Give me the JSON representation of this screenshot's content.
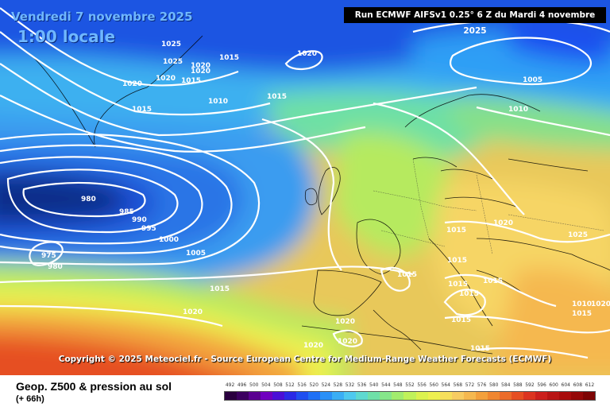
{
  "header": {
    "date": "Vendredi 7 novembre 2025",
    "time": "1:00 locale",
    "run": "Run ECMWF AIFSv1 0.25° 6 Z du Mardi 4 novembre 2025"
  },
  "copyright": "Copyright © 2025 Meteociel.fr - Source European Centre for Medium-Range Weather Forecasts (ECMWF)",
  "footer": {
    "title": "Geop. Z500 & pression au sol",
    "subtitle": "(+ 66h)"
  },
  "legend": {
    "values": [
      "492",
      "496",
      "500",
      "504",
      "508",
      "512",
      "516",
      "520",
      "524",
      "528",
      "532",
      "536",
      "540",
      "544",
      "548",
      "552",
      "556",
      "560",
      "564",
      "568",
      "572",
      "576",
      "580",
      "584",
      "588",
      "592",
      "596",
      "600",
      "604",
      "608",
      "612"
    ],
    "colors": [
      "#2a003f",
      "#3c0060",
      "#5a0090",
      "#6f00bf",
      "#4a0fd6",
      "#2a2ae6",
      "#1f4ff0",
      "#1f70f5",
      "#2a90f7",
      "#3aaef5",
      "#4ec9ef",
      "#5ed9d0",
      "#6fe0a8",
      "#86e68a",
      "#a2ec6e",
      "#c0f25a",
      "#dcf24f",
      "#eef050",
      "#f6df5c",
      "#f7cc62",
      "#f5b84f",
      "#f3a03c",
      "#f08630",
      "#ec6c2a",
      "#e64f22",
      "#dc3420",
      "#cc1f1c",
      "#b81414",
      "#a80c0c",
      "#950808",
      "#7d0404"
    ]
  },
  "isobar_labels": [
    "1025",
    "1025",
    "1020",
    "1020",
    "1015",
    "1015",
    "1020",
    "1020",
    "1015",
    "1010",
    "1015",
    "1020",
    "1005",
    "1010",
    "980",
    "985",
    "990",
    "995",
    "1000",
    "1005",
    "975",
    "980",
    "1015",
    "1015",
    "1020",
    "1015",
    "1025",
    "1015",
    "1015",
    "1015",
    "1015",
    "1010",
    "1020",
    "1015",
    "1020",
    "1020",
    "1020",
    "1015",
    "1015",
    "1020"
  ],
  "colors": {
    "z500_low_center": "#0d2f8a",
    "z500_high": "#f5d565",
    "isobar": "#ffffff"
  }
}
